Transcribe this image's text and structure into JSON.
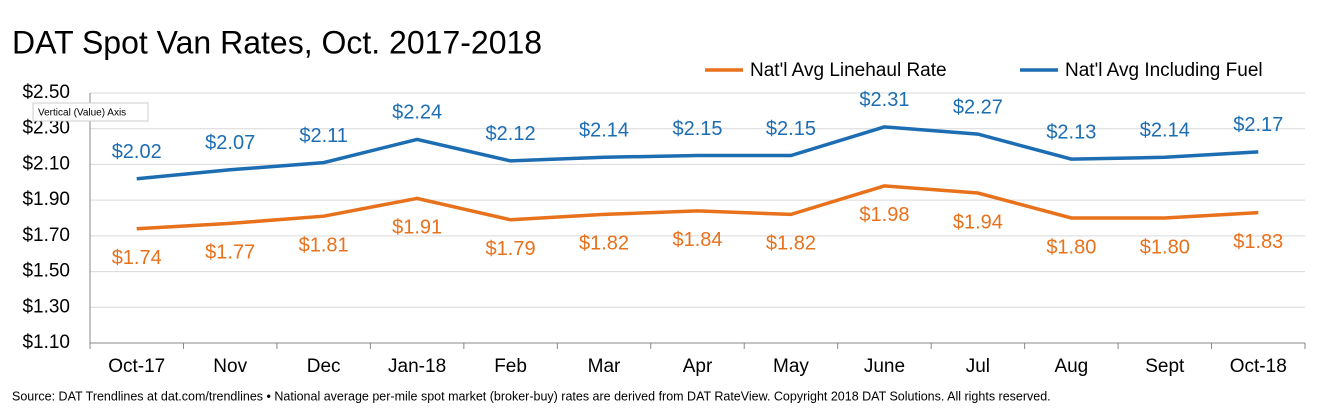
{
  "chart_data": {
    "type": "line",
    "title": "DAT Spot Van Rates, Oct. 2017-2018",
    "tooltip": "Vertical (Value) Axis",
    "source": "Source: DAT Trendlines at dat.com/trendlines • National average per-mile spot market (broker-buy) rates are derived from DAT RateView. Copyright 2018 DAT Solutions. All rights reserved.",
    "categories": [
      "Oct-17",
      "Nov",
      "Dec",
      "Jan-18",
      "Feb",
      "Mar",
      "Apr",
      "May",
      "June",
      "Jul",
      "Aug",
      "Sept",
      "Oct-18"
    ],
    "series": [
      {
        "name": "Nat'l Avg Linehaul Rate",
        "color": "#e8711c",
        "label_side": "below",
        "values": [
          1.74,
          1.77,
          1.81,
          1.91,
          1.79,
          1.82,
          1.84,
          1.82,
          1.98,
          1.94,
          1.8,
          1.8,
          1.83
        ],
        "value_labels": [
          "$1.74",
          "$1.77",
          "$1.81",
          "$1.91",
          "$1.79",
          "$1.82",
          "$1.84",
          "$1.82",
          "$1.98",
          "$1.94",
          "$1.80",
          "$1.80",
          "$1.83"
        ]
      },
      {
        "name": "Nat'l Avg Including Fuel",
        "color": "#1d6db3",
        "label_side": "above",
        "values": [
          2.02,
          2.07,
          2.11,
          2.24,
          2.12,
          2.14,
          2.15,
          2.15,
          2.31,
          2.27,
          2.13,
          2.14,
          2.17
        ],
        "value_labels": [
          "$2.02",
          "$2.07",
          "$2.11",
          "$2.24",
          "$2.12",
          "$2.14",
          "$2.15",
          "$2.15",
          "$2.31",
          "$2.27",
          "$2.13",
          "$2.14",
          "$2.17"
        ]
      }
    ],
    "ylim": [
      1.1,
      2.5
    ],
    "yticks": [
      {
        "value": 1.1,
        "label": "$1.10"
      },
      {
        "value": 1.3,
        "label": "$1.30"
      },
      {
        "value": 1.5,
        "label": "$1.50"
      },
      {
        "value": 1.7,
        "label": "$1.70"
      },
      {
        "value": 1.9,
        "label": "$1.90"
      },
      {
        "value": 2.1,
        "label": "$2.10"
      },
      {
        "value": 2.3,
        "label": "$2.30"
      },
      {
        "value": 2.5,
        "label": "$2.50"
      }
    ],
    "grid": true
  }
}
